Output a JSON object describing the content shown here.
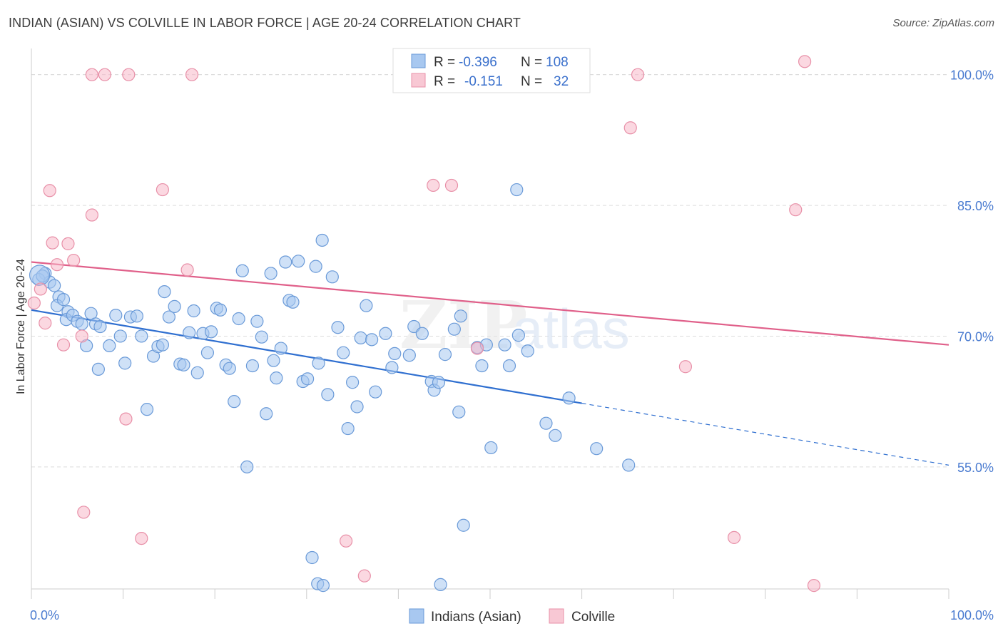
{
  "header": {
    "title": "INDIAN (ASIAN) VS COLVILLE IN LABOR FORCE | AGE 20-24 CORRELATION CHART",
    "source": "Source: ZipAtlas.com"
  },
  "watermark": {
    "zip": "ZIP",
    "atlas": "atlas"
  },
  "chart_data": {
    "type": "scatter",
    "title": "INDIAN (ASIAN) VS COLVILLE IN LABOR FORCE | AGE 20-24 CORRELATION CHART",
    "xlabel": "",
    "ylabel": "In Labor Force | Age 20-24",
    "xlim": [
      0,
      100
    ],
    "ylim": [
      41,
      103
    ],
    "x_tick_labels": [
      "0.0%",
      "100.0%"
    ],
    "y_ticks": [
      55,
      70,
      85,
      100
    ],
    "y_tick_labels": [
      "55.0%",
      "70.0%",
      "85.0%",
      "100.0%"
    ],
    "grid": true,
    "legend_placement": "top-center",
    "colors": {
      "series_a_fill": "#a8c8f0",
      "series_a_stroke": "#6a9ad8",
      "series_a_line": "#2f6fd0",
      "series_b_fill": "#f8b8c8",
      "series_b_stroke": "#e890a8",
      "series_b_line": "#e0608a",
      "tick_text": "#4a7bd0"
    },
    "stats_legend": [
      {
        "r_label": "R =",
        "r_value": "-0.396",
        "n_label": "N =",
        "n_value": "108"
      },
      {
        "r_label": "R =",
        "r_value": "-0.151",
        "n_label": "N =",
        "n_value": "32"
      }
    ],
    "series": [
      {
        "name": "Indians (Asian)",
        "trend": {
          "x0": 0,
          "y0": 73.0,
          "x1": 60,
          "y1": 62.3,
          "dash_to_x": 100,
          "dash_to_y": 55.2
        },
        "points": [
          [
            1.5,
            77.2
          ],
          [
            0.8,
            76.5
          ],
          [
            2,
            76.2
          ],
          [
            1.2,
            76.9
          ],
          [
            2.5,
            75.8
          ],
          [
            3,
            74.5
          ],
          [
            2.8,
            73.5
          ],
          [
            3.5,
            74.2
          ],
          [
            4,
            72.8
          ],
          [
            3.8,
            71.9
          ],
          [
            4.5,
            72.4
          ],
          [
            5,
            71.7
          ],
          [
            5.5,
            71.4
          ],
          [
            6.5,
            72.6
          ],
          [
            7,
            71.4
          ],
          [
            7.5,
            71.1
          ],
          [
            6,
            68.9
          ],
          [
            7.3,
            66.2
          ],
          [
            8.5,
            68.9
          ],
          [
            9.2,
            72.4
          ],
          [
            9.7,
            70.0
          ],
          [
            10.2,
            66.9
          ],
          [
            10.8,
            72.2
          ],
          [
            11.5,
            72.3
          ],
          [
            12,
            70.0
          ],
          [
            12.6,
            61.6
          ],
          [
            13.3,
            67.7
          ],
          [
            13.8,
            68.8
          ],
          [
            14.3,
            69.0
          ],
          [
            14.5,
            75.1
          ],
          [
            15,
            72.2
          ],
          [
            15.6,
            73.4
          ],
          [
            16.2,
            66.8
          ],
          [
            16.6,
            66.7
          ],
          [
            17.2,
            70.4
          ],
          [
            17.7,
            72.9
          ],
          [
            18.1,
            65.8
          ],
          [
            18.7,
            70.3
          ],
          [
            19.2,
            68.1
          ],
          [
            19.6,
            70.5
          ],
          [
            20.2,
            73.2
          ],
          [
            20.6,
            73.0
          ],
          [
            21.2,
            66.7
          ],
          [
            21.6,
            66.3
          ],
          [
            22.1,
            62.5
          ],
          [
            22.6,
            72.0
          ],
          [
            23,
            77.5
          ],
          [
            23.5,
            55.0
          ],
          [
            24.1,
            66.6
          ],
          [
            24.6,
            71.7
          ],
          [
            25.1,
            69.9
          ],
          [
            25.6,
            61.1
          ],
          [
            26.1,
            77.2
          ],
          [
            26.4,
            67.2
          ],
          [
            26.7,
            65.2
          ],
          [
            27.2,
            68.6
          ],
          [
            27.7,
            78.5
          ],
          [
            28.1,
            74.1
          ],
          [
            28.5,
            73.9
          ],
          [
            29.1,
            78.6
          ],
          [
            29.6,
            64.8
          ],
          [
            30.1,
            65.1
          ],
          [
            30.6,
            44.6
          ],
          [
            31,
            78.0
          ],
          [
            31.3,
            66.9
          ],
          [
            31.7,
            81.0
          ],
          [
            32.3,
            63.3
          ],
          [
            32.8,
            76.8
          ],
          [
            33.4,
            71.0
          ],
          [
            34,
            68.1
          ],
          [
            34.5,
            59.4
          ],
          [
            35,
            64.7
          ],
          [
            35.5,
            61.9
          ],
          [
            35.9,
            69.8
          ],
          [
            36.5,
            73.5
          ],
          [
            37.1,
            69.6
          ],
          [
            37.5,
            63.6
          ],
          [
            38.6,
            70.3
          ],
          [
            39.3,
            66.4
          ],
          [
            39.6,
            68.0
          ],
          [
            41.2,
            67.8
          ],
          [
            41.7,
            71.1
          ],
          [
            42.6,
            70.3
          ],
          [
            43.6,
            64.8
          ],
          [
            43.9,
            63.8
          ],
          [
            44.4,
            64.7
          ],
          [
            45.1,
            67.9
          ],
          [
            46.1,
            70.8
          ],
          [
            46.6,
            61.3
          ],
          [
            46.8,
            72.3
          ],
          [
            47.1,
            48.3
          ],
          [
            48.6,
            68.7
          ],
          [
            49.1,
            66.6
          ],
          [
            49.6,
            69.0
          ],
          [
            50.1,
            57.2
          ],
          [
            51.6,
            69.0
          ],
          [
            52.1,
            66.6
          ],
          [
            52.9,
            86.8
          ],
          [
            53.1,
            70.1
          ],
          [
            54.1,
            68.3
          ],
          [
            56.1,
            60.0
          ],
          [
            57.1,
            58.6
          ],
          [
            58.6,
            62.9
          ],
          [
            44.6,
            41.5
          ],
          [
            61.6,
            57.1
          ],
          [
            65.1,
            55.2
          ],
          [
            31.2,
            41.6
          ],
          [
            31.8,
            41.4
          ]
        ]
      },
      {
        "name": "Colville",
        "trend": {
          "x0": 0,
          "y0": 78.5,
          "x1": 100,
          "y1": 69.0
        },
        "points": [
          [
            0.3,
            73.8
          ],
          [
            1,
            75.4
          ],
          [
            1.5,
            71.5
          ],
          [
            2,
            86.7
          ],
          [
            2.3,
            80.7
          ],
          [
            2.8,
            78.2
          ],
          [
            3.5,
            69.0
          ],
          [
            4,
            80.6
          ],
          [
            4.6,
            78.7
          ],
          [
            5.5,
            70.0
          ],
          [
            5.7,
            49.8
          ],
          [
            6.6,
            83.9
          ],
          [
            6.6,
            100.0
          ],
          [
            8,
            100.0
          ],
          [
            10.3,
            60.5
          ],
          [
            10.6,
            100.0
          ],
          [
            12,
            46.8
          ],
          [
            14.3,
            86.8
          ],
          [
            17,
            77.6
          ],
          [
            17.5,
            100.0
          ],
          [
            34.3,
            46.5
          ],
          [
            36.3,
            42.5
          ],
          [
            43.8,
            87.3
          ],
          [
            45.8,
            87.3
          ],
          [
            48.6,
            68.6
          ],
          [
            65.3,
            93.9
          ],
          [
            66.1,
            100.0
          ],
          [
            71.3,
            66.5
          ],
          [
            76.6,
            46.9
          ],
          [
            83.3,
            84.5
          ],
          [
            85.3,
            41.4
          ],
          [
            84.3,
            101.5
          ]
        ]
      }
    ]
  },
  "bottom_legend": [
    {
      "label": "Indians (Asian)",
      "color": "#a8c8f0",
      "border": "#6a9ad8"
    },
    {
      "label": "Colville",
      "color": "#f8c8d4",
      "border": "#e890a8"
    }
  ]
}
